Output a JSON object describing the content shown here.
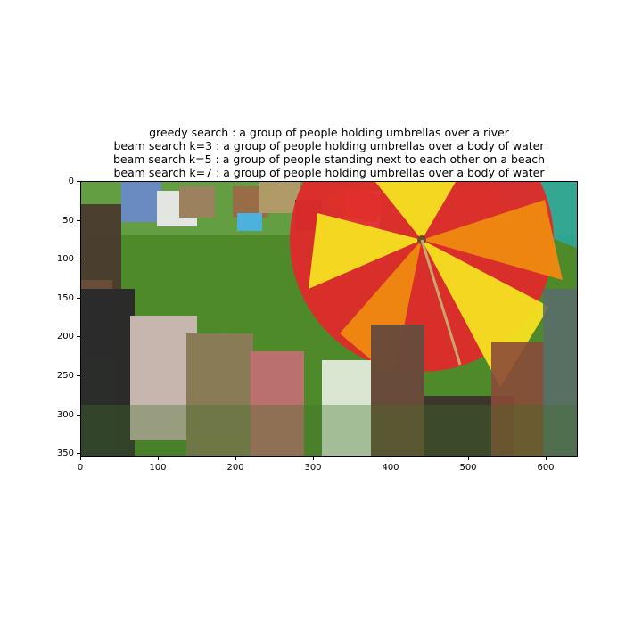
{
  "figure": {
    "title_lines": [
      "greedy search : a group of people holding umbrellas over a river",
      "beam search k=3 :  a group of people holding umbrellas over a body of water",
      "beam search k=5 :  a group of people standing next to each other on a beach",
      "beam search k=7 :  a group of people holding umbrellas over a body of water"
    ],
    "x_ticks": [
      "0",
      "100",
      "200",
      "300",
      "400",
      "500",
      "600"
    ],
    "y_ticks": [
      "0",
      "50",
      "100",
      "150",
      "200",
      "250",
      "300",
      "350"
    ]
  },
  "image": {
    "description_icon": "photo-of-people-on-grass-with-umbrella-icon",
    "colors": {
      "grass": "#4e8a2a",
      "umbrella_red": "#e02a2a",
      "umbrella_orange": "#f08a10",
      "umbrella_yellow": "#f6e020",
      "sky_umbrella_teal": "#2aa8a0"
    }
  }
}
